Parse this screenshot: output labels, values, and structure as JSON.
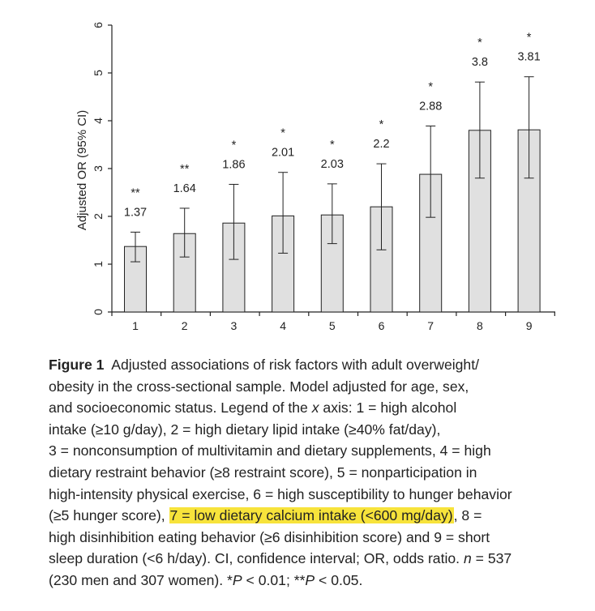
{
  "chart_data": {
    "type": "bar",
    "ylabel": "Adjusted OR (95% CI)",
    "xlabel": "",
    "ylim": [
      0,
      6
    ],
    "yticks": [
      "0",
      "1",
      "2",
      "3",
      "4",
      "5",
      "6"
    ],
    "categories": [
      "1",
      "2",
      "3",
      "4",
      "5",
      "6",
      "7",
      "8",
      "9"
    ],
    "values": [
      1.37,
      1.64,
      1.86,
      2.01,
      2.03,
      2.2,
      2.88,
      3.8,
      3.81
    ],
    "value_labels": [
      "1.37",
      "1.64",
      "1.86",
      "2.01",
      "2.03",
      "2.2",
      "2.88",
      "3.8",
      "3.81"
    ],
    "ci_low": [
      1.05,
      1.15,
      1.1,
      1.23,
      1.43,
      1.3,
      1.98,
      2.8,
      2.8
    ],
    "ci_high": [
      1.67,
      2.17,
      2.67,
      2.92,
      2.68,
      3.1,
      3.89,
      4.81,
      4.92
    ],
    "significance": [
      "**",
      "**",
      "*",
      "*",
      "*",
      "*",
      "*",
      "*",
      "*"
    ],
    "bar_color": "#e0e0e0",
    "bar_stroke": "#222222",
    "grid": false
  },
  "caption": {
    "label": "Figure 1",
    "l1": "Adjusted associations of risk factors with adult overweight/",
    "l2": "obesity in the cross-sectional sample. Model adjusted for age, sex,",
    "l3": "and socioeconomic status. Legend of the ",
    "l3_x": "x",
    "l3_b": " axis: 1 = high alcohol",
    "l4": "intake (≥10 g/day), 2 = high dietary lipid intake (≥40% fat/day),",
    "l5": "3 = nonconsumption of multivitamin and dietary supplements, 4 = high",
    "l6": "dietary restraint behavior (≥8 restraint score), 5 = nonparticipation in",
    "l7": "high-intensity physical exercise, 6 = high susceptibility to hunger behavior",
    "l8a": "(≥5 hunger score), ",
    "l8_highlight": "7 = low dietary calcium intake (<600 mg/day)",
    "l8b": ", 8 =",
    "l9": "high disinhibition eating behavior (≥6 disinhibition score) and 9 = short",
    "l10a": "sleep duration (<6 h/day). CI, confidence interval; OR, odds ratio. ",
    "l10_n": "n",
    "l10b": " = 537",
    "l11a": "(230 men and 307 women). *",
    "l11_p1": "P",
    "l11b": " < 0.01; **",
    "l11_p2": "P",
    "l11c": " < 0.05.",
    "highlight_color": "#f7e33b"
  }
}
